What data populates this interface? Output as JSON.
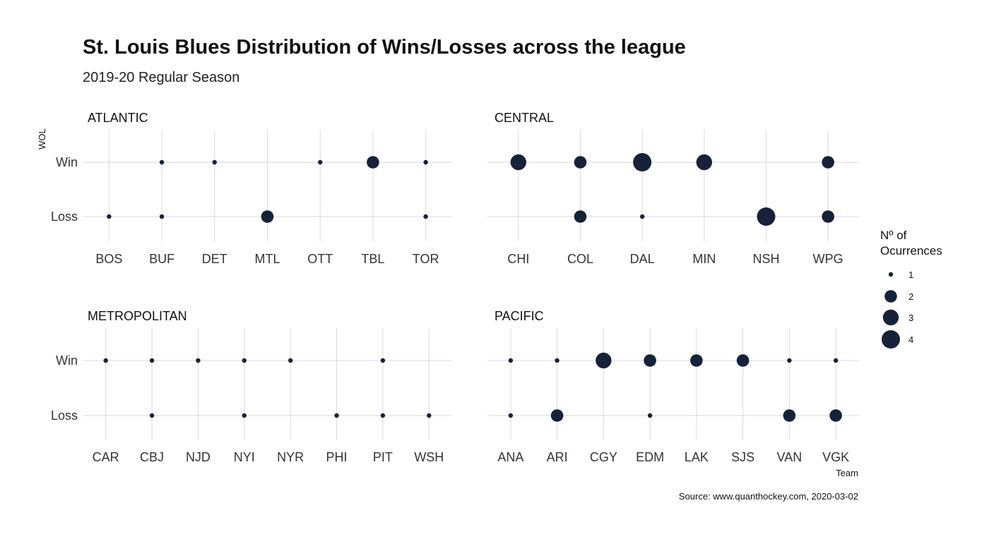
{
  "chart_data": {
    "type": "scatter",
    "title": "St. Louis Blues Distribution of Wins/Losses across the league",
    "subtitle": "2019-20 Regular Season",
    "xlabel": "Team",
    "ylabel": "WOL",
    "y_categories": [
      "Win",
      "Loss"
    ],
    "grid": true,
    "caption": "Source: www.quanthockey.com, 2020-03-02",
    "legend": {
      "title_lines": [
        "Nº of",
        "Ocurrences"
      ],
      "values": [
        1,
        2,
        3,
        4
      ],
      "placement": "right",
      "color": "#16223a"
    },
    "facets": [
      {
        "name": "ATLANTIC",
        "teams": [
          "BOS",
          "BUF",
          "DET",
          "MTL",
          "OTT",
          "TBL",
          "TOR"
        ],
        "points": [
          {
            "team": "BOS",
            "wol": "Loss",
            "n": 1
          },
          {
            "team": "BUF",
            "wol": "Win",
            "n": 1
          },
          {
            "team": "BUF",
            "wol": "Loss",
            "n": 1
          },
          {
            "team": "DET",
            "wol": "Win",
            "n": 1
          },
          {
            "team": "MTL",
            "wol": "Loss",
            "n": 2
          },
          {
            "team": "OTT",
            "wol": "Win",
            "n": 1
          },
          {
            "team": "TBL",
            "wol": "Win",
            "n": 2
          },
          {
            "team": "TOR",
            "wol": "Win",
            "n": 1
          },
          {
            "team": "TOR",
            "wol": "Loss",
            "n": 1
          }
        ]
      },
      {
        "name": "CENTRAL",
        "teams": [
          "CHI",
          "COL",
          "DAL",
          "MIN",
          "NSH",
          "WPG"
        ],
        "points": [
          {
            "team": "CHI",
            "wol": "Win",
            "n": 3
          },
          {
            "team": "COL",
            "wol": "Win",
            "n": 2
          },
          {
            "team": "COL",
            "wol": "Loss",
            "n": 2
          },
          {
            "team": "DAL",
            "wol": "Win",
            "n": 4
          },
          {
            "team": "DAL",
            "wol": "Loss",
            "n": 1
          },
          {
            "team": "MIN",
            "wol": "Win",
            "n": 3
          },
          {
            "team": "NSH",
            "wol": "Loss",
            "n": 4
          },
          {
            "team": "WPG",
            "wol": "Win",
            "n": 2
          },
          {
            "team": "WPG",
            "wol": "Loss",
            "n": 2
          }
        ]
      },
      {
        "name": "METROPOLITAN",
        "teams": [
          "CAR",
          "CBJ",
          "NJD",
          "NYI",
          "NYR",
          "PHI",
          "PIT",
          "WSH"
        ],
        "points": [
          {
            "team": "CAR",
            "wol": "Win",
            "n": 1
          },
          {
            "team": "CBJ",
            "wol": "Win",
            "n": 1
          },
          {
            "team": "CBJ",
            "wol": "Loss",
            "n": 1
          },
          {
            "team": "NJD",
            "wol": "Win",
            "n": 1
          },
          {
            "team": "NYI",
            "wol": "Win",
            "n": 1
          },
          {
            "team": "NYI",
            "wol": "Loss",
            "n": 1
          },
          {
            "team": "NYR",
            "wol": "Win",
            "n": 1
          },
          {
            "team": "PHI",
            "wol": "Loss",
            "n": 1
          },
          {
            "team": "PIT",
            "wol": "Win",
            "n": 1
          },
          {
            "team": "PIT",
            "wol": "Loss",
            "n": 1
          },
          {
            "team": "WSH",
            "wol": "Loss",
            "n": 1
          }
        ]
      },
      {
        "name": "PACIFIC",
        "teams": [
          "ANA",
          "ARI",
          "CGY",
          "EDM",
          "LAK",
          "SJS",
          "VAN",
          "VGK"
        ],
        "points": [
          {
            "team": "ANA",
            "wol": "Win",
            "n": 1
          },
          {
            "team": "ANA",
            "wol": "Loss",
            "n": 1
          },
          {
            "team": "ARI",
            "wol": "Win",
            "n": 1
          },
          {
            "team": "ARI",
            "wol": "Loss",
            "n": 2
          },
          {
            "team": "CGY",
            "wol": "Win",
            "n": 3
          },
          {
            "team": "EDM",
            "wol": "Win",
            "n": 2
          },
          {
            "team": "EDM",
            "wol": "Loss",
            "n": 1
          },
          {
            "team": "LAK",
            "wol": "Win",
            "n": 2
          },
          {
            "team": "SJS",
            "wol": "Win",
            "n": 2
          },
          {
            "team": "VAN",
            "wol": "Win",
            "n": 1
          },
          {
            "team": "VAN",
            "wol": "Loss",
            "n": 2
          },
          {
            "team": "VGK",
            "wol": "Win",
            "n": 1
          },
          {
            "team": "VGK",
            "wol": "Loss",
            "n": 2
          }
        ]
      }
    ]
  }
}
